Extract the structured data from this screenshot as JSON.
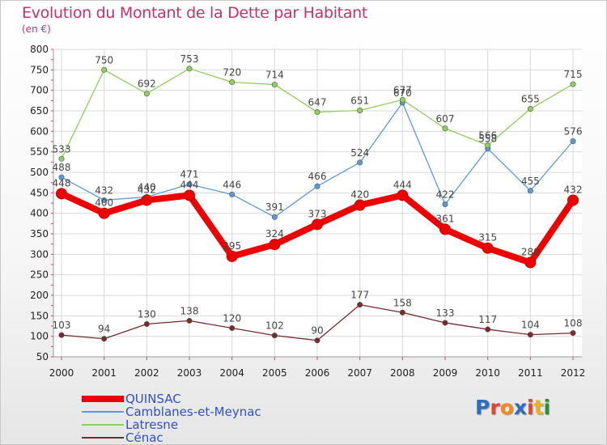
{
  "title": "Evolution du Montant de la Dette par Habitant",
  "unit": "(en €)",
  "logo": {
    "text": "Proxiti",
    "letter_colors": [
      "#2b6fbf",
      "#e0472e",
      "#f08a1e",
      "#2b6fbf",
      "#e0472e",
      "#e8b51e",
      "#2b8f3a"
    ]
  },
  "chart_data": {
    "type": "line",
    "title": "Evolution du Montant de la Dette par Habitant",
    "ylabel": "(en €)",
    "xlabel": "",
    "x": [
      "2000",
      "2001",
      "2002",
      "2003",
      "2004",
      "2005",
      "2006",
      "2007",
      "2008",
      "2009",
      "2010",
      "2011",
      "2012"
    ],
    "ylim": [
      50,
      800
    ],
    "yticks": [
      "50",
      "100",
      "150",
      "200",
      "250",
      "300",
      "350",
      "400",
      "450",
      "500",
      "550",
      "600",
      "650",
      "700",
      "750",
      "800"
    ],
    "grid": true,
    "legend_position": "bottom-left",
    "series": [
      {
        "name": "QUINSAC",
        "color": "#ee0000",
        "emphasis": true,
        "values": [
          448,
          400,
          432,
          444,
          295,
          324,
          373,
          420,
          444,
          361,
          315,
          280,
          432
        ],
        "labels": [
          "448",
          "400",
          "432",
          "444",
          "295",
          "324",
          "373",
          "420",
          "444",
          "361",
          "315",
          "280",
          "432"
        ]
      },
      {
        "name": "Camblanes-et-Meynac",
        "color": "#5b9bd5",
        "emphasis": false,
        "values": [
          488,
          432,
          440,
          471,
          446,
          391,
          466,
          524,
          670,
          422,
          558,
          455,
          576
        ],
        "labels": [
          "488",
          "432",
          "440",
          "471",
          "446",
          "391",
          "466",
          "524",
          "670",
          "422",
          "558",
          "455",
          "576"
        ]
      },
      {
        "name": "Latresne",
        "color": "#8fd05a",
        "emphasis": false,
        "values": [
          533,
          750,
          692,
          753,
          720,
          714,
          647,
          651,
          677,
          607,
          566,
          655,
          715
        ],
        "labels": [
          "533",
          "750",
          "692",
          "753",
          "720",
          "714",
          "647",
          "651",
          "677",
          "607",
          "566",
          "655",
          "715"
        ]
      },
      {
        "name": "Cénac",
        "color": "#7a2a2a",
        "emphasis": false,
        "values": [
          103,
          94,
          130,
          138,
          120,
          102,
          90,
          177,
          158,
          133,
          117,
          104,
          108
        ],
        "labels": [
          "103",
          "94",
          "130",
          "138",
          "120",
          "102",
          "90",
          "177",
          "158",
          "133",
          "117",
          "104",
          "108"
        ]
      }
    ]
  }
}
